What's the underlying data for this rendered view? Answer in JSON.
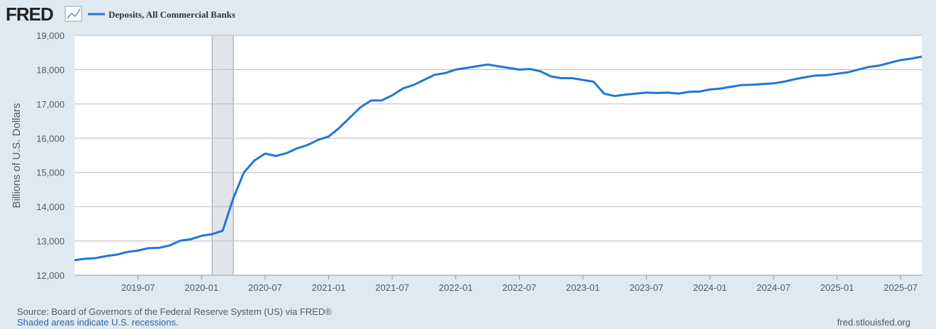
{
  "logo": "FRED",
  "chart_data": {
    "type": "line",
    "ylabel": "Billions of U.S. Dollars",
    "x": [
      "2019-01",
      "2019-02",
      "2019-03",
      "2019-04",
      "2019-05",
      "2019-06",
      "2019-07",
      "2019-08",
      "2019-09",
      "2019-10",
      "2019-11",
      "2019-12",
      "2020-01",
      "2020-02",
      "2020-03",
      "2020-04",
      "2020-05",
      "2020-06",
      "2020-07",
      "2020-08",
      "2020-09",
      "2020-10",
      "2020-11",
      "2020-12",
      "2021-01",
      "2021-02",
      "2021-03",
      "2021-04",
      "2021-05",
      "2021-06",
      "2021-07",
      "2021-08",
      "2021-09",
      "2021-10",
      "2021-11",
      "2021-12",
      "2022-01",
      "2022-02",
      "2022-03",
      "2022-04",
      "2022-05",
      "2022-06",
      "2022-07",
      "2022-08",
      "2022-09",
      "2022-10",
      "2022-11",
      "2022-12",
      "2023-01",
      "2023-02",
      "2023-03",
      "2023-04",
      "2023-05",
      "2023-06",
      "2023-07",
      "2023-08",
      "2023-09",
      "2023-10",
      "2023-11",
      "2023-12",
      "2024-01",
      "2024-02",
      "2024-03",
      "2024-04",
      "2024-05",
      "2024-06",
      "2024-07",
      "2024-08",
      "2024-09",
      "2024-10",
      "2024-11",
      "2024-12",
      "2025-01",
      "2025-02",
      "2025-03",
      "2025-04",
      "2025-05",
      "2025-06",
      "2025-07",
      "2025-08",
      "2025-09"
    ],
    "series": [
      {
        "name": "Deposits, All Commercial Banks",
        "color": "#1f77d6",
        "values": [
          12440,
          12480,
          12500,
          12560,
          12600,
          12680,
          12720,
          12790,
          12800,
          12870,
          13010,
          13050,
          13150,
          13200,
          13300,
          14250,
          15000,
          15350,
          15550,
          15480,
          15560,
          15700,
          15800,
          15950,
          16050,
          16300,
          16600,
          16900,
          17100,
          17100,
          17250,
          17450,
          17550,
          17700,
          17850,
          17900,
          18000,
          18050,
          18100,
          18150,
          18100,
          18050,
          18000,
          18020,
          17950,
          17800,
          17750,
          17750,
          17700,
          17650,
          17300,
          17230,
          17270,
          17300,
          17330,
          17320,
          17330,
          17300,
          17350,
          17360,
          17420,
          17450,
          17500,
          17550,
          17560,
          17580,
          17600,
          17650,
          17720,
          17780,
          17830,
          17840,
          17880,
          17920,
          18000,
          18080,
          18120,
          18200,
          18280,
          18320,
          18380
        ]
      }
    ],
    "xlim": [
      "2019-01",
      "2025-09"
    ],
    "xticks": [
      "2019-07",
      "2020-01",
      "2020-07",
      "2021-01",
      "2021-07",
      "2022-01",
      "2022-07",
      "2023-01",
      "2023-07",
      "2024-01",
      "2024-07",
      "2025-01",
      "2025-07"
    ],
    "ylim": [
      12000,
      19000
    ],
    "yticks": [
      {
        "value": 12000,
        "label": "12,000"
      },
      {
        "value": 13000,
        "label": "13,000"
      },
      {
        "value": 14000,
        "label": "14,000"
      },
      {
        "value": 15000,
        "label": "15,000"
      },
      {
        "value": 16000,
        "label": "16,000"
      },
      {
        "value": 17000,
        "label": "17,000"
      },
      {
        "value": 18000,
        "label": "18,000"
      },
      {
        "value": 19000,
        "label": "19,000"
      }
    ],
    "grid": true,
    "recession": [
      "2020-02",
      "2020-04"
    ],
    "source": "Source: Board of Governors of the Federal Reserve System (US) via FRED®",
    "note": "Shaded areas indicate U.S. recessions.",
    "url": "fred.stlouisfed.org"
  }
}
